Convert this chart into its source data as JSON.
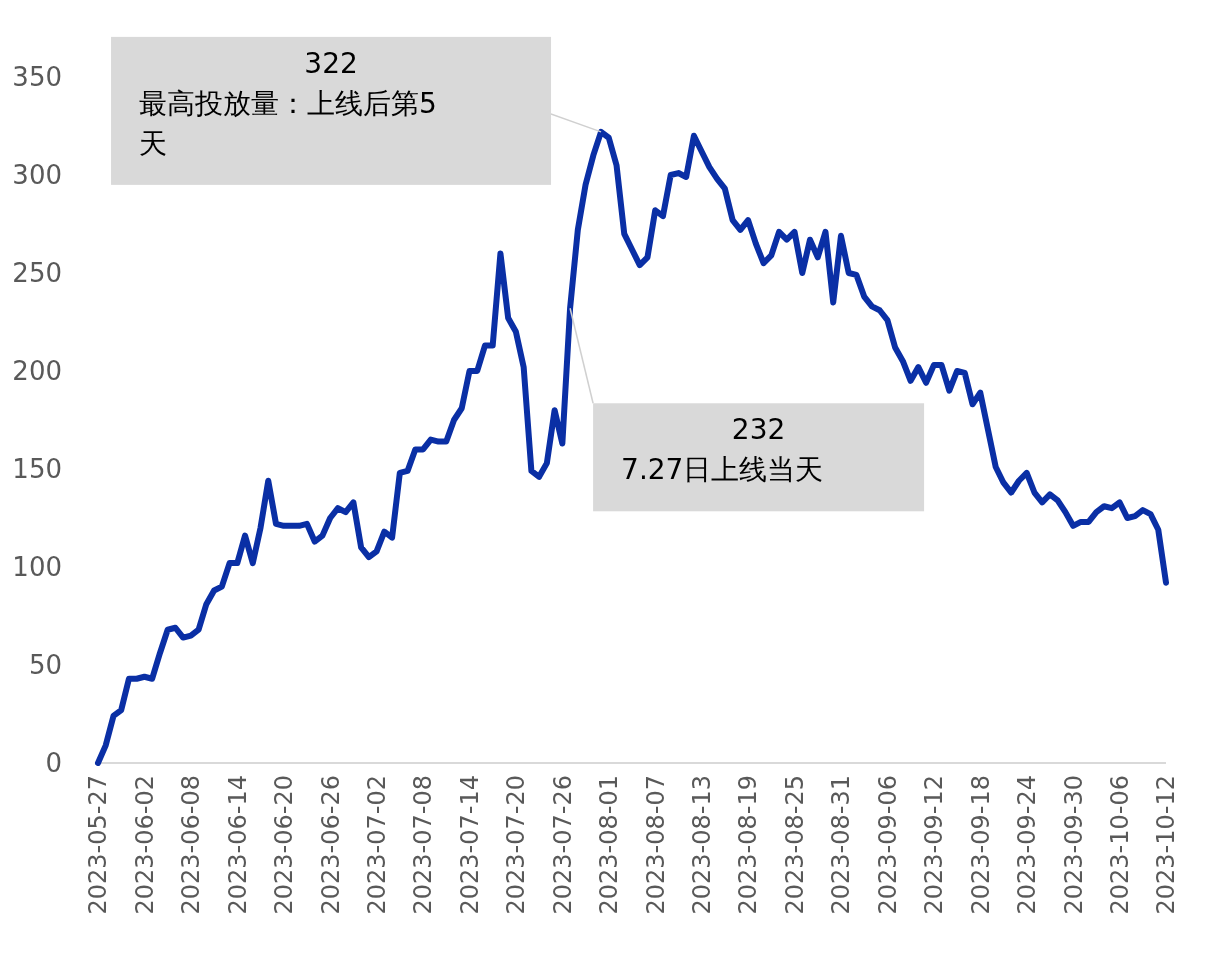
{
  "chart_data": {
    "type": "line",
    "x": [
      "2023-05-27",
      "2023-05-28",
      "2023-05-29",
      "2023-05-30",
      "2023-05-31",
      "2023-06-01",
      "2023-06-02",
      "2023-06-03",
      "2023-06-04",
      "2023-06-05",
      "2023-06-06",
      "2023-06-07",
      "2023-06-08",
      "2023-06-09",
      "2023-06-10",
      "2023-06-11",
      "2023-06-12",
      "2023-06-13",
      "2023-06-14",
      "2023-06-15",
      "2023-06-16",
      "2023-06-17",
      "2023-06-18",
      "2023-06-19",
      "2023-06-20",
      "2023-06-21",
      "2023-06-22",
      "2023-06-23",
      "2023-06-24",
      "2023-06-25",
      "2023-06-26",
      "2023-06-27",
      "2023-06-28",
      "2023-06-29",
      "2023-06-30",
      "2023-07-01",
      "2023-07-02",
      "2023-07-03",
      "2023-07-04",
      "2023-07-05",
      "2023-07-06",
      "2023-07-07",
      "2023-07-08",
      "2023-07-09",
      "2023-07-10",
      "2023-07-11",
      "2023-07-12",
      "2023-07-13",
      "2023-07-14",
      "2023-07-15",
      "2023-07-16",
      "2023-07-17",
      "2023-07-18",
      "2023-07-19",
      "2023-07-20",
      "2023-07-21",
      "2023-07-22",
      "2023-07-23",
      "2023-07-24",
      "2023-07-25",
      "2023-07-26",
      "2023-07-27",
      "2023-07-28",
      "2023-07-29",
      "2023-07-30",
      "2023-07-31",
      "2023-08-01",
      "2023-08-02",
      "2023-08-03",
      "2023-08-04",
      "2023-08-05",
      "2023-08-06",
      "2023-08-07",
      "2023-08-08",
      "2023-08-09",
      "2023-08-10",
      "2023-08-11",
      "2023-08-12",
      "2023-08-13",
      "2023-08-14",
      "2023-08-15",
      "2023-08-16",
      "2023-08-17",
      "2023-08-18",
      "2023-08-19",
      "2023-08-20",
      "2023-08-21",
      "2023-08-22",
      "2023-08-23",
      "2023-08-24",
      "2023-08-25",
      "2023-08-26",
      "2023-08-27",
      "2023-08-28",
      "2023-08-29",
      "2023-08-30",
      "2023-08-31",
      "2023-09-01",
      "2023-09-02",
      "2023-09-03",
      "2023-09-04",
      "2023-09-05",
      "2023-09-06",
      "2023-09-07",
      "2023-09-08",
      "2023-09-09",
      "2023-09-10",
      "2023-09-11",
      "2023-09-12",
      "2023-09-13",
      "2023-09-14",
      "2023-09-15",
      "2023-09-16",
      "2023-09-17",
      "2023-09-18",
      "2023-09-19",
      "2023-09-20",
      "2023-09-21",
      "2023-09-22",
      "2023-09-23",
      "2023-09-24",
      "2023-09-25",
      "2023-09-26",
      "2023-09-27",
      "2023-09-28",
      "2023-09-29",
      "2023-09-30",
      "2023-10-01",
      "2023-10-02",
      "2023-10-03",
      "2023-10-04",
      "2023-10-05",
      "2023-10-06",
      "2023-10-07",
      "2023-10-08",
      "2023-10-09",
      "2023-10-10",
      "2023-10-11",
      "2023-10-12"
    ],
    "series": [
      {
        "color": "#0a2fa5",
        "values": [
          0,
          9,
          24,
          27,
          43,
          43,
          44,
          43,
          56,
          68,
          69,
          64,
          65,
          68,
          81,
          88,
          90,
          102,
          102,
          116,
          102,
          120,
          144,
          122,
          121,
          121,
          121,
          122,
          113,
          116,
          125,
          130,
          128,
          133,
          110,
          105,
          108,
          118,
          115,
          148,
          149,
          160,
          160,
          165,
          164,
          164,
          175,
          181,
          200,
          200,
          213,
          213,
          260,
          227,
          220,
          202,
          149,
          146,
          153,
          180,
          163,
          232,
          272,
          295,
          310,
          322,
          319,
          305,
          270,
          262,
          254,
          258,
          282,
          279,
          300,
          301,
          299,
          320,
          312,
          304,
          298,
          293,
          277,
          272,
          277,
          265,
          255,
          259,
          271,
          267,
          271,
          250,
          267,
          258,
          271,
          235,
          269,
          250,
          249,
          238,
          233,
          231,
          226,
          212,
          205,
          195,
          202,
          194,
          203,
          203,
          190,
          200,
          199,
          183,
          189,
          170,
          151,
          143,
          138,
          144,
          148,
          138,
          133,
          137,
          134,
          128,
          121,
          123,
          123,
          128,
          131,
          130,
          133,
          125,
          126,
          129,
          127,
          119,
          92
        ]
      }
    ],
    "xlim": [
      "2023-05-27",
      "2023-10-12"
    ],
    "xticks": [
      "2023-05-27",
      "2023-06-02",
      "2023-06-08",
      "2023-06-14",
      "2023-06-20",
      "2023-06-26",
      "2023-07-02",
      "2023-07-08",
      "2023-07-14",
      "2023-07-20",
      "2023-07-26",
      "2023-08-01",
      "2023-08-07",
      "2023-08-13",
      "2023-08-19",
      "2023-08-25",
      "2023-08-31",
      "2023-09-06",
      "2023-09-12",
      "2023-09-18",
      "2023-09-24",
      "2023-09-30",
      "2023-10-06",
      "2023-10-12"
    ],
    "ylim": [
      0,
      350
    ],
    "yticks": [
      0,
      50,
      100,
      150,
      200,
      250,
      300,
      350
    ],
    "annotations": [
      {
        "text": "322\n最高投放量：上线后第5天",
        "x": "2023-07-31",
        "y": 322
      },
      {
        "text": "232\n7.27日上线当天",
        "x": "2023-07-27",
        "y": 232
      }
    ]
  }
}
